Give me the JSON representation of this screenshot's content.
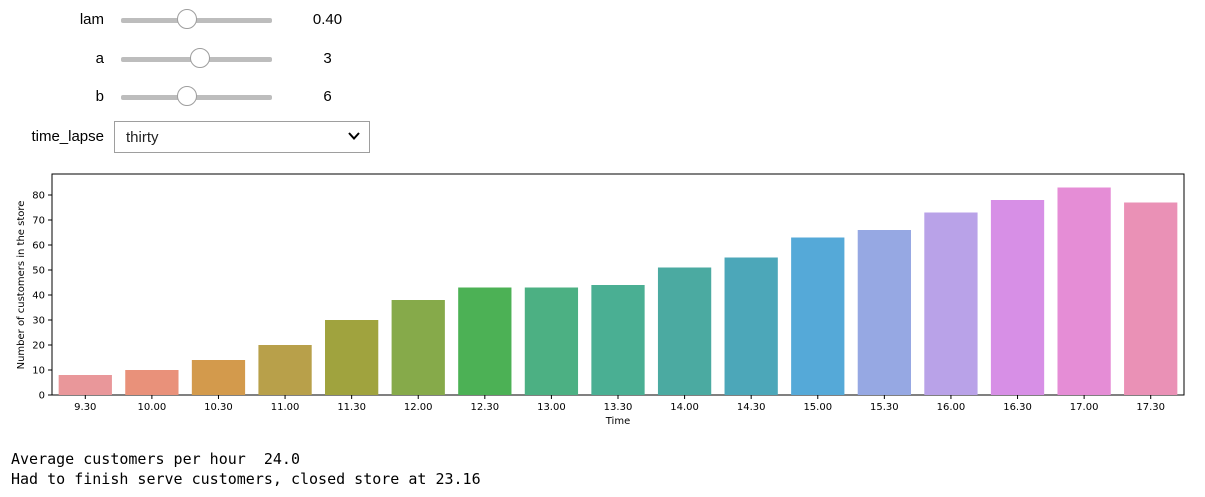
{
  "controls": {
    "sliders": [
      {
        "label": "lam",
        "readout": "0.40",
        "fraction": 0.44
      },
      {
        "label": "a",
        "readout": "3",
        "fraction": 0.52
      },
      {
        "label": "b",
        "readout": "6",
        "fraction": 0.44
      }
    ],
    "dropdown": {
      "label": "time_lapse",
      "selected": "thirty"
    }
  },
  "chart_data": {
    "type": "bar",
    "xlabel": "Time",
    "ylabel": "Number of customers in the store",
    "ylim": [
      0,
      86
    ],
    "yticks": [
      0,
      10,
      20,
      30,
      40,
      50,
      60,
      70,
      80
    ],
    "categories": [
      "9.30",
      "10.00",
      "10.30",
      "11.00",
      "11.30",
      "12.00",
      "12.30",
      "13.00",
      "13.30",
      "14.00",
      "14.30",
      "15.00",
      "15.30",
      "16.00",
      "16.30",
      "17.00",
      "17.30"
    ],
    "values": [
      8,
      10,
      14,
      20,
      30,
      38,
      43,
      43,
      44,
      51,
      55,
      63,
      66,
      73,
      78,
      83,
      77
    ],
    "colors": [
      "#e9979a",
      "#e9917a",
      "#d39a4c",
      "#b8a04a",
      "#a0a33e",
      "#86aa4a",
      "#4cb155",
      "#4cb083",
      "#4aaf93",
      "#4baaa1",
      "#4ca7b9",
      "#55a9d8",
      "#96a8e3",
      "#b9a2e8",
      "#d78fe6",
      "#e58dd6",
      "#ea91b6"
    ],
    "legend": "none",
    "grid": false
  },
  "output": {
    "line1": "Average customers per hour  24.0",
    "line2": "Had to finish serve customers, closed store at 23.16"
  }
}
